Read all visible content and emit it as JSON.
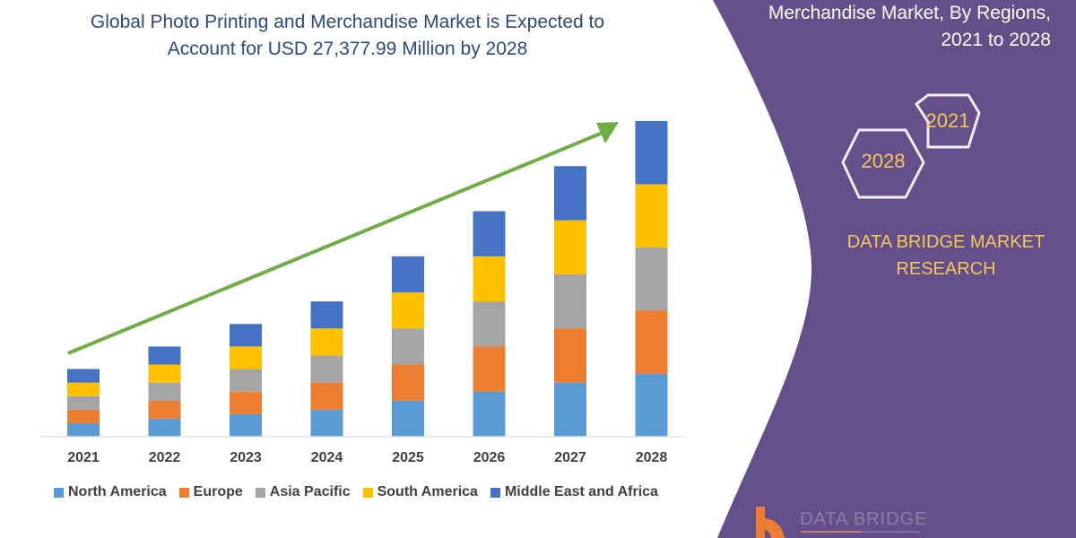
{
  "title": {
    "line1": "Global Photo Printing and Merchandise Market is Expected to",
    "line2": "Account for USD 27,377.99 Million by 2028"
  },
  "side_panel": {
    "title_line1": "Merchandise Market, By Regions,",
    "title_line2": "2021 to 2028",
    "hex_1": "2021",
    "hex_2": "2028",
    "brand_line1": "DATA BRIDGE MARKET",
    "brand_line2": "RESEARCH",
    "logo_text": "DATA BRIDGE",
    "panel_color": "#654f8a",
    "accent_color": "#f2c85b"
  },
  "chart_data": {
    "type": "bar",
    "stacked": true,
    "categories": [
      "2021",
      "2022",
      "2023",
      "2024",
      "2025",
      "2026",
      "2027",
      "2028"
    ],
    "series": [
      {
        "name": "North America",
        "color": "#5b9bd5",
        "values": [
          15,
          20,
          25,
          30,
          40,
          50,
          60,
          70
        ]
      },
      {
        "name": "Europe",
        "color": "#ed7d31",
        "values": [
          15,
          20,
          25,
          30,
          40,
          50,
          60,
          70
        ]
      },
      {
        "name": "Asia Pacific",
        "color": "#a5a5a5",
        "values": [
          15,
          20,
          25,
          30,
          40,
          50,
          60,
          70
        ]
      },
      {
        "name": "South America",
        "color": "#ffc000",
        "values": [
          15,
          20,
          25,
          30,
          40,
          50,
          60,
          70
        ]
      },
      {
        "name": "Middle East and Africa",
        "color": "#4472c4",
        "values": [
          15,
          20,
          25,
          30,
          40,
          50,
          60,
          70
        ]
      }
    ],
    "ylim": [
      0,
      350
    ],
    "grid": false,
    "legend": "bottom",
    "trend_arrow_color": "#70ad47"
  }
}
